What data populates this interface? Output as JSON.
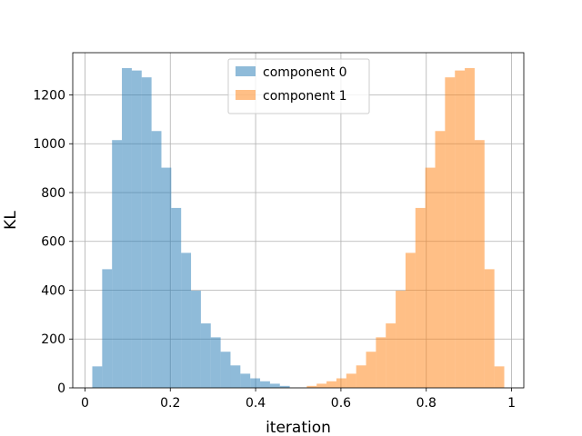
{
  "chart_data": {
    "type": "bar",
    "title": "",
    "xlabel": "iteration",
    "ylabel": "KL",
    "xlim": [
      -0.0286,
      1.0286
    ],
    "ylim": [
      0,
      1373
    ],
    "xticks": [
      0,
      0.2,
      0.4,
      0.6,
      0.8,
      1
    ],
    "xtick_labels": [
      "0",
      "0.2",
      "0.4",
      "0.6",
      "0.8",
      "1"
    ],
    "yticks": [
      0,
      200,
      400,
      600,
      800,
      1000,
      1200
    ],
    "ytick_labels": [
      "0",
      "200",
      "400",
      "600",
      "800",
      "1000",
      "1200"
    ],
    "grid": true,
    "legend_position": "upper center",
    "bins": 40,
    "series": [
      {
        "name": "component 0",
        "color": "#1f77b4",
        "opacity": 0.5,
        "range": [
          0.0172,
          0.48
        ],
        "counts": [
          88,
          486,
          1015,
          1310,
          1300,
          1272,
          1052,
          902,
          737,
          553,
          398,
          264,
          207,
          148,
          92,
          58,
          39,
          27,
          17,
          8
        ]
      },
      {
        "name": "component 1",
        "color": "#ff7f0e",
        "opacity": 0.5,
        "range": [
          0.52,
          0.9828
        ],
        "counts": [
          8,
          17,
          27,
          39,
          58,
          92,
          148,
          207,
          264,
          398,
          553,
          737,
          902,
          1052,
          1272,
          1300,
          1310,
          1015,
          486,
          88
        ]
      }
    ]
  }
}
